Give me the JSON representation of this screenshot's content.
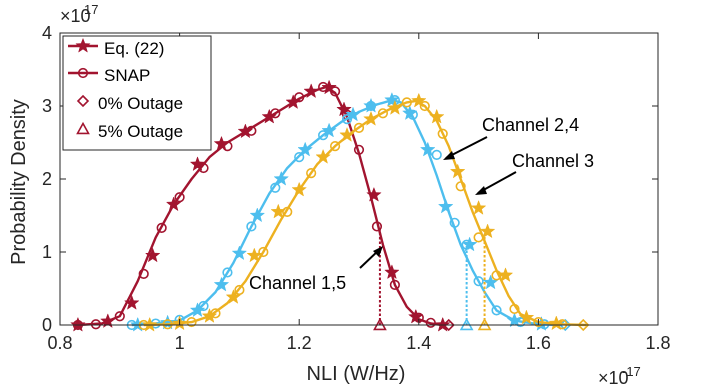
{
  "chart_data": {
    "type": "line",
    "xlabel": "NLI (W/Hz)",
    "ylabel": "Probability Density",
    "x_exponent_label": "×10",
    "x_exponent_power": "-17",
    "y_exponent_label": "×10",
    "y_exponent_power": "17",
    "xlim": [
      0.8,
      1.8
    ],
    "ylim": [
      0,
      4
    ],
    "xticks": [
      "0.8",
      "1",
      "1.2",
      "1.4",
      "1.6",
      "1.8"
    ],
    "yticks": [
      "0",
      "1",
      "2",
      "3",
      "4"
    ],
    "grid": false,
    "legend_position": "top-left",
    "legend": [
      {
        "label": "Eq. (22)",
        "marker": "star"
      },
      {
        "label": "SNAP",
        "marker": "circle"
      },
      {
        "label": "0% Outage",
        "marker": "diamond"
      },
      {
        "label": "5% Outage",
        "marker": "triangle"
      }
    ],
    "colors": {
      "channel_1_5": "#A2142F",
      "channel_2_4": "#4DBEEE",
      "channel_3": "#EDB120"
    },
    "annotations": [
      {
        "text": "Channel 2,4",
        "series": "channel_2_4"
      },
      {
        "text": "Channel 3",
        "series": "channel_3"
      },
      {
        "text": "Channel 1,5",
        "series": "channel_1_5"
      }
    ],
    "series": [
      {
        "id": "channel_1_5",
        "color": "#A2142F",
        "curve": [
          [
            0.83,
            0
          ],
          [
            0.87,
            0.02
          ],
          [
            0.9,
            0.12
          ],
          [
            0.93,
            0.6
          ],
          [
            0.96,
            1.2
          ],
          [
            0.99,
            1.65
          ],
          [
            1.02,
            2.0
          ],
          [
            1.05,
            2.3
          ],
          [
            1.08,
            2.5
          ],
          [
            1.11,
            2.65
          ],
          [
            1.14,
            2.8
          ],
          [
            1.17,
            2.95
          ],
          [
            1.2,
            3.1
          ],
          [
            1.23,
            3.22
          ],
          [
            1.245,
            3.26
          ],
          [
            1.26,
            3.18
          ],
          [
            1.28,
            2.85
          ],
          [
            1.3,
            2.35
          ],
          [
            1.32,
            1.75
          ],
          [
            1.34,
            1.1
          ],
          [
            1.36,
            0.55
          ],
          [
            1.38,
            0.25
          ],
          [
            1.4,
            0.08
          ],
          [
            1.42,
            0.02
          ],
          [
            1.44,
            0
          ]
        ],
        "eq22_markers": [
          [
            0.83,
            0
          ],
          [
            0.88,
            0.05
          ],
          [
            0.92,
            0.3
          ],
          [
            0.955,
            0.95
          ],
          [
            0.99,
            1.65
          ],
          [
            1.03,
            2.2
          ],
          [
            1.07,
            2.48
          ],
          [
            1.11,
            2.65
          ],
          [
            1.15,
            2.85
          ],
          [
            1.19,
            3.05
          ],
          [
            1.22,
            3.2
          ],
          [
            1.25,
            3.25
          ],
          [
            1.275,
            2.95
          ],
          [
            1.325,
            1.78
          ],
          [
            1.355,
            0.72
          ],
          [
            1.395,
            0.11
          ],
          [
            1.44,
            0
          ]
        ],
        "snap_markers": [
          [
            0.83,
            0
          ],
          [
            0.86,
            0.01
          ],
          [
            0.9,
            0.12
          ],
          [
            0.94,
            0.7
          ],
          [
            0.97,
            1.33
          ],
          [
            1.0,
            1.75
          ],
          [
            1.04,
            2.15
          ],
          [
            1.08,
            2.45
          ],
          [
            1.12,
            2.66
          ],
          [
            1.16,
            2.9
          ],
          [
            1.2,
            3.12
          ],
          [
            1.24,
            3.26
          ],
          [
            1.26,
            3.2
          ],
          [
            1.28,
            2.88
          ],
          [
            1.3,
            2.4
          ],
          [
            1.33,
            1.35
          ],
          [
            1.36,
            0.55
          ],
          [
            1.4,
            0.1
          ],
          [
            1.42,
            0.03
          ]
        ],
        "outage_0": 1.45,
        "outage_5": 1.335,
        "outage_5_density": 1.35
      },
      {
        "id": "channel_2_4",
        "color": "#4DBEEE",
        "curve": [
          [
            0.92,
            0
          ],
          [
            0.96,
            0.02
          ],
          [
            1.0,
            0.06
          ],
          [
            1.03,
            0.2
          ],
          [
            1.06,
            0.45
          ],
          [
            1.09,
            0.85
          ],
          [
            1.12,
            1.35
          ],
          [
            1.15,
            1.8
          ],
          [
            1.18,
            2.15
          ],
          [
            1.21,
            2.4
          ],
          [
            1.24,
            2.6
          ],
          [
            1.27,
            2.78
          ],
          [
            1.3,
            2.92
          ],
          [
            1.33,
            3.02
          ],
          [
            1.355,
            3.08
          ],
          [
            1.37,
            3.05
          ],
          [
            1.39,
            2.85
          ],
          [
            1.41,
            2.5
          ],
          [
            1.43,
            2.05
          ],
          [
            1.45,
            1.55
          ],
          [
            1.47,
            1.1
          ],
          [
            1.49,
            0.75
          ],
          [
            1.51,
            0.45
          ],
          [
            1.53,
            0.2
          ],
          [
            1.56,
            0.06
          ],
          [
            1.6,
            0.01
          ],
          [
            1.64,
            0
          ]
        ],
        "eq22_markers": [
          [
            0.93,
            0
          ],
          [
            0.98,
            0.03
          ],
          [
            1.03,
            0.2
          ],
          [
            1.07,
            0.55
          ],
          [
            1.1,
            0.98
          ],
          [
            1.13,
            1.5
          ],
          [
            1.17,
            2.0
          ],
          [
            1.21,
            2.4
          ],
          [
            1.25,
            2.66
          ],
          [
            1.29,
            2.88
          ],
          [
            1.32,
            3.0
          ],
          [
            1.355,
            3.08
          ],
          [
            1.385,
            2.9
          ],
          [
            1.415,
            2.4
          ],
          [
            1.445,
            1.62
          ],
          [
            1.485,
            1.1
          ],
          [
            1.52,
            0.58
          ],
          [
            1.56,
            0.06
          ],
          [
            1.605,
            0.01
          ]
        ],
        "snap_markers": [
          [
            0.92,
            0
          ],
          [
            0.96,
            0.02
          ],
          [
            1.0,
            0.07
          ],
          [
            1.04,
            0.26
          ],
          [
            1.08,
            0.72
          ],
          [
            1.12,
            1.35
          ],
          [
            1.16,
            1.88
          ],
          [
            1.2,
            2.3
          ],
          [
            1.24,
            2.6
          ],
          [
            1.28,
            2.82
          ],
          [
            1.32,
            3.0
          ],
          [
            1.36,
            3.08
          ],
          [
            1.39,
            2.88
          ],
          [
            1.43,
            2.33
          ],
          [
            1.46,
            1.4
          ],
          [
            1.48,
            1.1
          ],
          [
            1.5,
            0.6
          ],
          [
            1.53,
            0.2
          ],
          [
            1.57,
            0.04
          ],
          [
            1.61,
            0.01
          ]
        ],
        "outage_0": 1.645,
        "outage_5": 1.48,
        "outage_5_density": 1.1
      },
      {
        "id": "channel_3",
        "color": "#EDB120",
        "curve": [
          [
            0.94,
            0
          ],
          [
            0.98,
            0.01
          ],
          [
            1.02,
            0.04
          ],
          [
            1.05,
            0.12
          ],
          [
            1.08,
            0.3
          ],
          [
            1.11,
            0.6
          ],
          [
            1.14,
            1.0
          ],
          [
            1.17,
            1.45
          ],
          [
            1.2,
            1.85
          ],
          [
            1.23,
            2.2
          ],
          [
            1.26,
            2.45
          ],
          [
            1.29,
            2.65
          ],
          [
            1.32,
            2.82
          ],
          [
            1.35,
            2.95
          ],
          [
            1.38,
            3.05
          ],
          [
            1.395,
            3.07
          ],
          [
            1.41,
            3.0
          ],
          [
            1.43,
            2.8
          ],
          [
            1.45,
            2.45
          ],
          [
            1.47,
            2.0
          ],
          [
            1.49,
            1.55
          ],
          [
            1.51,
            1.15
          ],
          [
            1.53,
            0.75
          ],
          [
            1.55,
            0.4
          ],
          [
            1.57,
            0.15
          ],
          [
            1.6,
            0.04
          ],
          [
            1.64,
            0.01
          ],
          [
            1.68,
            0
          ]
        ],
        "eq22_markers": [
          [
            0.95,
            0
          ],
          [
            1.0,
            0.02
          ],
          [
            1.05,
            0.12
          ],
          [
            1.09,
            0.38
          ],
          [
            1.125,
            0.95
          ],
          [
            1.165,
            1.55
          ],
          [
            1.2,
            1.85
          ],
          [
            1.24,
            2.3
          ],
          [
            1.28,
            2.6
          ],
          [
            1.32,
            2.82
          ],
          [
            1.36,
            2.97
          ],
          [
            1.4,
            3.07
          ],
          [
            1.43,
            2.85
          ],
          [
            1.465,
            2.1
          ],
          [
            1.5,
            1.6
          ],
          [
            1.515,
            1.28
          ],
          [
            1.545,
            0.68
          ],
          [
            1.58,
            0.1
          ],
          [
            1.63,
            0.02
          ]
        ],
        "snap_markers": [
          [
            0.94,
            0
          ],
          [
            0.98,
            0.01
          ],
          [
            1.02,
            0.04
          ],
          [
            1.06,
            0.16
          ],
          [
            1.1,
            0.48
          ],
          [
            1.14,
            1.0
          ],
          [
            1.18,
            1.55
          ],
          [
            1.22,
            2.08
          ],
          [
            1.26,
            2.45
          ],
          [
            1.3,
            2.7
          ],
          [
            1.34,
            2.9
          ],
          [
            1.38,
            3.05
          ],
          [
            1.41,
            3.0
          ],
          [
            1.44,
            2.62
          ],
          [
            1.47,
            1.9
          ],
          [
            1.5,
            1.2
          ],
          [
            1.53,
            0.68
          ],
          [
            1.56,
            0.22
          ],
          [
            1.6,
            0.04
          ],
          [
            1.64,
            0.01
          ]
        ],
        "outage_0": 1.675,
        "outage_5": 1.51,
        "outage_5_density": 1.25
      }
    ]
  }
}
